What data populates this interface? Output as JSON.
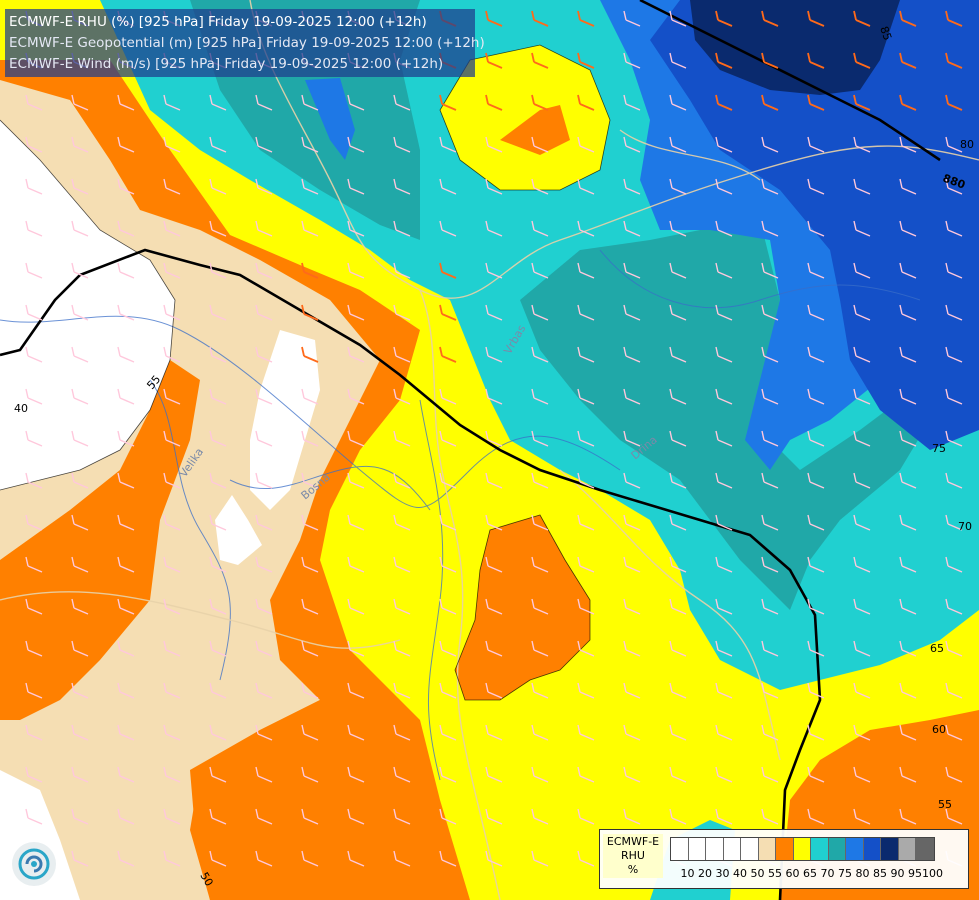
{
  "header": {
    "line1": "ECMWF-E RHU (%) [925 hPa] Friday 19-09-2025 12:00 (+12h)",
    "line2": "ECMWF-E Geopotential (m) [925 hPa] Friday 19-09-2025 12:00 (+12h)",
    "line3": "ECMWF-E Wind (m/s) [925 hPa] Friday 19-09-2025 12:00 (+12h)"
  },
  "legend": {
    "model": "ECMWF-E",
    "variable": "RHU",
    "unit": "%",
    "ticks": [
      "10",
      "20",
      "30",
      "40",
      "50",
      "55",
      "60",
      "65",
      "70",
      "75",
      "80",
      "85",
      "90",
      "95",
      "100"
    ],
    "colors": [
      "#ffffff",
      "#ffffff",
      "#ffffff",
      "#ffffff",
      "#ffffff",
      "#f5deb3",
      "#ff8000",
      "#ffff00",
      "#20d0d0",
      "#20a8a8",
      "#1e78e6",
      "#1450c8",
      "#0a2a6e",
      "#aaaaaa",
      "#666666"
    ]
  },
  "contour_labels": {
    "l40": "40",
    "l50": "50",
    "l55a": "55",
    "l55b": "55",
    "l60": "60",
    "l65": "65",
    "l70": "70",
    "l75": "75",
    "l80": "80",
    "l85": "85",
    "l880": "880"
  },
  "place_labels": {
    "p1": "Velika",
    "p2": "Bosna",
    "p3": "Drina",
    "p4": "Vrbas"
  },
  "colors": {
    "white": "#ffffff",
    "wheat": "#f5deb3",
    "orange": "#ff8000",
    "yellow": "#ffff00",
    "cyan": "#20d0d0",
    "teal": "#20a8a8",
    "blue": "#1e78e6",
    "darkblue": "#1450c8",
    "navy": "#0a2a6e"
  },
  "icons": {
    "logo": "ecmwf-swirl-logo"
  }
}
